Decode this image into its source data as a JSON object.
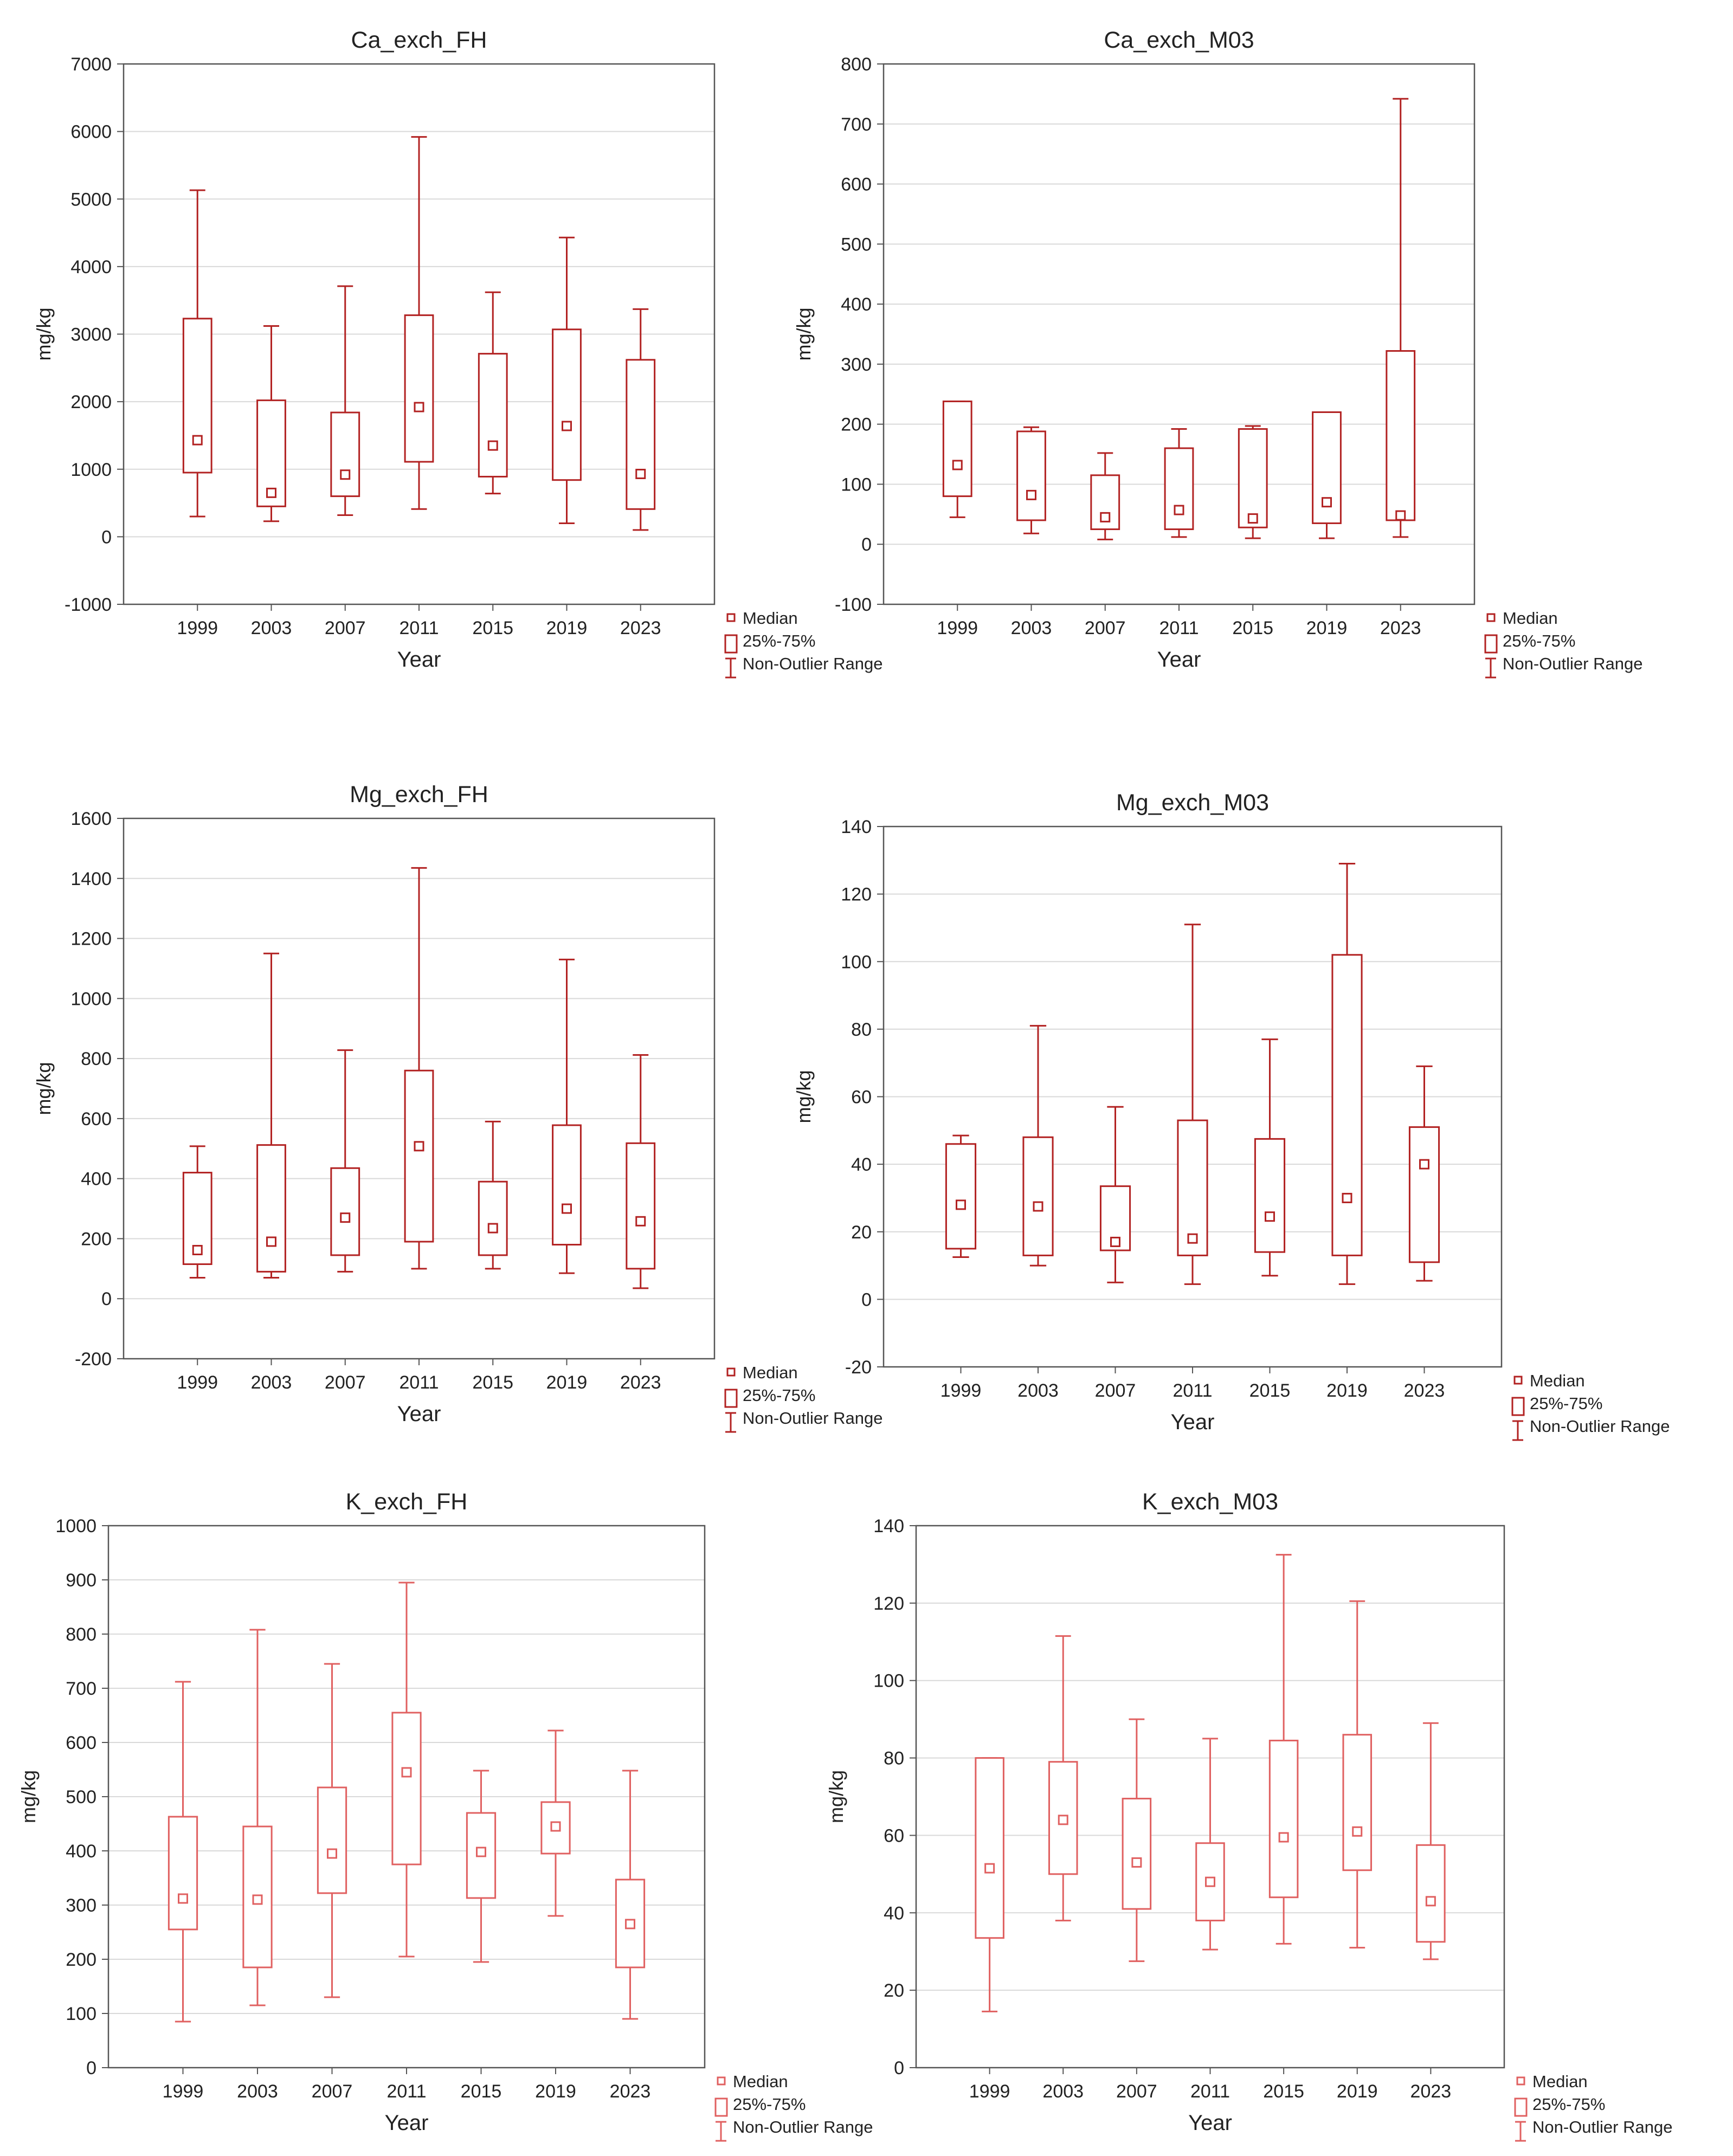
{
  "colors": {
    "dark_red": "#b22222",
    "light_red": "#e06060",
    "grid": "#d9d9d9",
    "axis": "#555555",
    "text": "#222222"
  },
  "chart_data": [
    {
      "id": "ca_fh",
      "type": "boxplot",
      "title": "Ca_exch_FH",
      "xlabel": "Year",
      "ylabel": "mg/kg",
      "categories": [
        "1999",
        "2003",
        "2007",
        "2011",
        "2015",
        "2019",
        "2023"
      ],
      "ylim": [
        -1000,
        7000
      ],
      "yticks": [
        "-1000",
        "0",
        "1000",
        "2000",
        "3000",
        "4000",
        "5000",
        "6000",
        "7000"
      ],
      "legend": [
        "Median",
        "25%-75%",
        "Non-Outlier Range"
      ],
      "color": "dark_red",
      "boxes": [
        {
          "min": 300,
          "q1": 950,
          "median": 1430,
          "q3": 3230,
          "max": 5130
        },
        {
          "min": 230,
          "q1": 450,
          "median": 650,
          "q3": 2020,
          "max": 3120
        },
        {
          "min": 320,
          "q1": 600,
          "median": 920,
          "q3": 1840,
          "max": 3710
        },
        {
          "min": 410,
          "q1": 1110,
          "median": 1920,
          "q3": 3280,
          "max": 5920
        },
        {
          "min": 640,
          "q1": 890,
          "median": 1350,
          "q3": 2710,
          "max": 3620
        },
        {
          "min": 200,
          "q1": 840,
          "median": 1640,
          "q3": 3070,
          "max": 4430
        },
        {
          "min": 100,
          "q1": 410,
          "median": 930,
          "q3": 2620,
          "max": 3370
        }
      ]
    },
    {
      "id": "ca_m03",
      "type": "boxplot",
      "title": "Ca_exch_M03",
      "xlabel": "Year",
      "ylabel": "mg/kg",
      "categories": [
        "1999",
        "2003",
        "2007",
        "2011",
        "2015",
        "2019",
        "2023"
      ],
      "ylim": [
        -100,
        800
      ],
      "yticks": [
        "-100",
        "0",
        "100",
        "200",
        "300",
        "400",
        "500",
        "600",
        "700",
        "800"
      ],
      "legend": [
        "Median",
        "25%-75%",
        "Non-Outlier Range"
      ],
      "color": "dark_red",
      "boxes": [
        {
          "min": 45,
          "q1": 80,
          "median": 132,
          "q3": 238,
          "max": 238
        },
        {
          "min": 18,
          "q1": 40,
          "median": 82,
          "q3": 188,
          "max": 195
        },
        {
          "min": 8,
          "q1": 25,
          "median": 45,
          "q3": 115,
          "max": 152
        },
        {
          "min": 12,
          "q1": 25,
          "median": 57,
          "q3": 160,
          "max": 192
        },
        {
          "min": 10,
          "q1": 28,
          "median": 43,
          "q3": 192,
          "max": 197
        },
        {
          "min": 10,
          "q1": 35,
          "median": 70,
          "q3": 220,
          "max": 220
        },
        {
          "min": 12,
          "q1": 40,
          "median": 48,
          "q3": 322,
          "max": 742
        }
      ]
    },
    {
      "id": "mg_fh",
      "type": "boxplot",
      "title": "Mg_exch_FH",
      "xlabel": "Year",
      "ylabel": "mg/kg",
      "categories": [
        "1999",
        "2003",
        "2007",
        "2011",
        "2015",
        "2019",
        "2023"
      ],
      "ylim": [
        -200,
        1600
      ],
      "yticks": [
        "-200",
        "0",
        "200",
        "400",
        "600",
        "800",
        "1000",
        "1200",
        "1400",
        "1600"
      ],
      "legend": [
        "Median",
        "25%-75%",
        "Non-Outlier Range"
      ],
      "color": "dark_red",
      "boxes": [
        {
          "min": 70,
          "q1": 115,
          "median": 162,
          "q3": 420,
          "max": 508
        },
        {
          "min": 70,
          "q1": 90,
          "median": 190,
          "q3": 512,
          "max": 1150
        },
        {
          "min": 90,
          "q1": 145,
          "median": 270,
          "q3": 435,
          "max": 828
        },
        {
          "min": 100,
          "q1": 190,
          "median": 508,
          "q3": 760,
          "max": 1435
        },
        {
          "min": 100,
          "q1": 145,
          "median": 235,
          "q3": 390,
          "max": 590
        },
        {
          "min": 85,
          "q1": 180,
          "median": 300,
          "q3": 578,
          "max": 1130
        },
        {
          "min": 35,
          "q1": 100,
          "median": 258,
          "q3": 518,
          "max": 812
        }
      ]
    },
    {
      "id": "mg_m03",
      "type": "boxplot",
      "title": "Mg_exch_M03",
      "xlabel": "Year",
      "ylabel": "mg/kg",
      "categories": [
        "1999",
        "2003",
        "2007",
        "2011",
        "2015",
        "2019",
        "2023"
      ],
      "ylim": [
        -20,
        140
      ],
      "yticks": [
        "-20",
        "0",
        "20",
        "40",
        "60",
        "80",
        "100",
        "120",
        "140"
      ],
      "legend": [
        "Median",
        "25%-75%",
        "Non-Outlier Range"
      ],
      "color": "dark_red",
      "boxes": [
        {
          "min": 12.5,
          "q1": 15,
          "median": 28,
          "q3": 46,
          "max": 48.5
        },
        {
          "min": 10,
          "q1": 13,
          "median": 27.5,
          "q3": 48,
          "max": 81
        },
        {
          "min": 5,
          "q1": 14.5,
          "median": 17,
          "q3": 33.5,
          "max": 57
        },
        {
          "min": 4.5,
          "q1": 13,
          "median": 18,
          "q3": 53,
          "max": 111
        },
        {
          "min": 7,
          "q1": 14,
          "median": 24.5,
          "q3": 47.5,
          "max": 77
        },
        {
          "min": 4.5,
          "q1": 13,
          "median": 30,
          "q3": 102,
          "max": 129
        },
        {
          "min": 5.5,
          "q1": 11,
          "median": 40,
          "q3": 51,
          "max": 69
        }
      ]
    },
    {
      "id": "k_fh",
      "type": "boxplot",
      "title": "K_exch_FH",
      "xlabel": "Year",
      "ylabel": "mg/kg",
      "categories": [
        "1999",
        "2003",
        "2007",
        "2011",
        "2015",
        "2019",
        "2023"
      ],
      "ylim": [
        0,
        1000
      ],
      "yticks": [
        "0",
        "100",
        "200",
        "300",
        "400",
        "500",
        "600",
        "700",
        "800",
        "900",
        "1000"
      ],
      "legend": [
        "Median",
        "25%-75%",
        "Non-Outlier Range"
      ],
      "color": "light_red",
      "boxes": [
        {
          "min": 85,
          "q1": 255,
          "median": 312,
          "q3": 463,
          "max": 712
        },
        {
          "min": 115,
          "q1": 185,
          "median": 310,
          "q3": 445,
          "max": 808
        },
        {
          "min": 130,
          "q1": 322,
          "median": 395,
          "q3": 517,
          "max": 745
        },
        {
          "min": 205,
          "q1": 375,
          "median": 545,
          "q3": 655,
          "max": 895
        },
        {
          "min": 195,
          "q1": 313,
          "median": 398,
          "q3": 470,
          "max": 548
        },
        {
          "min": 280,
          "q1": 395,
          "median": 445,
          "q3": 490,
          "max": 622
        },
        {
          "min": 90,
          "q1": 185,
          "median": 265,
          "q3": 347,
          "max": 548
        }
      ]
    },
    {
      "id": "k_m03",
      "type": "boxplot",
      "title": "K_exch_M03",
      "xlabel": "Year",
      "ylabel": "mg/kg",
      "categories": [
        "1999",
        "2003",
        "2007",
        "2011",
        "2015",
        "2019",
        "2023"
      ],
      "ylim": [
        0,
        140
      ],
      "yticks": [
        "0",
        "20",
        "40",
        "60",
        "80",
        "100",
        "120",
        "140"
      ],
      "legend": [
        "Median",
        "25%-75%",
        "Non-Outlier Range"
      ],
      "color": "light_red",
      "boxes": [
        {
          "min": 14.5,
          "q1": 33.5,
          "median": 51.5,
          "q3": 80,
          "max": 80
        },
        {
          "min": 38,
          "q1": 50,
          "median": 64,
          "q3": 79,
          "max": 111.5
        },
        {
          "min": 27.5,
          "q1": 41,
          "median": 53,
          "q3": 69.5,
          "max": 90
        },
        {
          "min": 30.5,
          "q1": 38,
          "median": 48,
          "q3": 58,
          "max": 85
        },
        {
          "min": 32,
          "q1": 44,
          "median": 59.5,
          "q3": 84.5,
          "max": 132.5
        },
        {
          "min": 31,
          "q1": 51,
          "median": 61,
          "q3": 86,
          "max": 120.5
        },
        {
          "min": 28,
          "q1": 32.5,
          "median": 43,
          "q3": 57.5,
          "max": 89
        }
      ]
    }
  ]
}
